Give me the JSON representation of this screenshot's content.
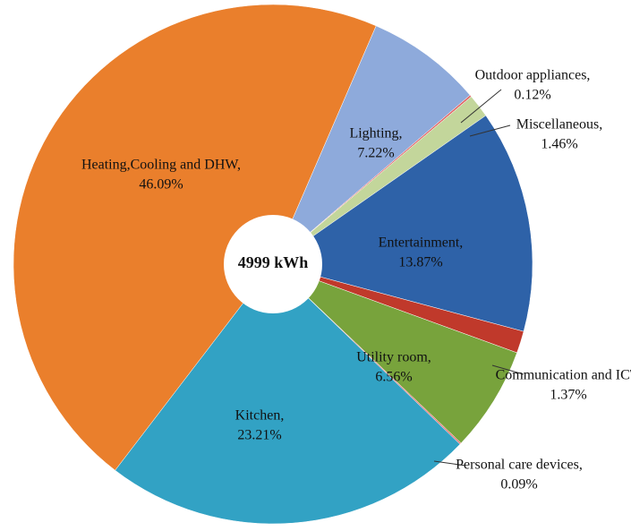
{
  "chart_data": {
    "type": "donut",
    "center_label": "4999 kWh",
    "categories": [
      "Lighting,",
      "Outdoor appliances,",
      "Miscellaneous,",
      "Entertainment,",
      "Communication and ICT,",
      "Utility room,",
      "Personal care devices,",
      "Kitchen,",
      "Heating,Cooling and DHW,"
    ],
    "values": [
      7.22,
      0.12,
      1.46,
      13.87,
      1.37,
      6.56,
      0.09,
      23.21,
      46.09
    ],
    "value_labels": [
      "7.22%",
      "0.12%",
      "1.46%",
      "13.87%",
      "1.37%",
      "6.56%",
      "0.09%",
      "23.21%",
      "46.09%"
    ],
    "colors": [
      "#8eaadb",
      "#e06666",
      "#c3d69b",
      "#2e62a8",
      "#c0392b",
      "#78a33c",
      "#e46c6c",
      "#32a2c4",
      "#ea7f2c"
    ]
  }
}
